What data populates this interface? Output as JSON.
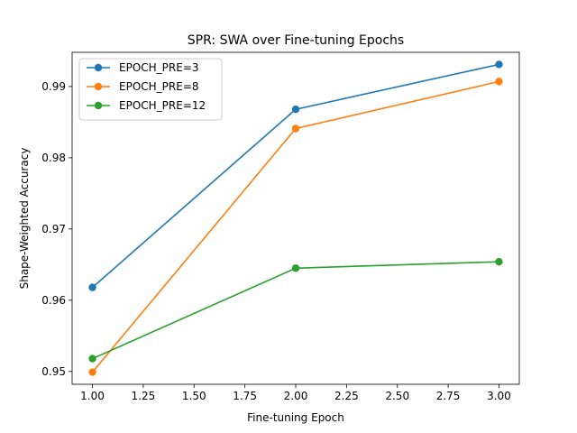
{
  "chart_data": {
    "type": "line",
    "title": "SPR: SWA over Fine-tuning Epochs",
    "xlabel": "Fine-tuning Epoch",
    "ylabel": "Shape-Weighted Accuracy",
    "xlim": [
      0.9,
      3.1
    ],
    "ylim": [
      0.9482,
      0.9948
    ],
    "xticks": [
      1.0,
      1.25,
      1.5,
      1.75,
      2.0,
      2.25,
      2.5,
      2.75,
      3.0
    ],
    "xtick_labels": [
      "1.00",
      "1.25",
      "1.50",
      "1.75",
      "2.00",
      "2.25",
      "2.50",
      "2.75",
      "3.00"
    ],
    "yticks": [
      0.95,
      0.96,
      0.97,
      0.98,
      0.99
    ],
    "ytick_labels": [
      "0.95",
      "0.96",
      "0.97",
      "0.98",
      "0.99"
    ],
    "grid": false,
    "legend_position": "top-left",
    "x": [
      1,
      2,
      3
    ],
    "series": [
      {
        "name": "EPOCH_PRE=3",
        "color": "#1f77b4",
        "values": [
          0.9618,
          0.9868,
          0.9931
        ]
      },
      {
        "name": "EPOCH_PRE=8",
        "color": "#ff7f0e",
        "values": [
          0.9499,
          0.9841,
          0.9907
        ]
      },
      {
        "name": "EPOCH_PRE=12",
        "color": "#2ca02c",
        "values": [
          0.9518,
          0.9645,
          0.9654
        ]
      }
    ]
  }
}
